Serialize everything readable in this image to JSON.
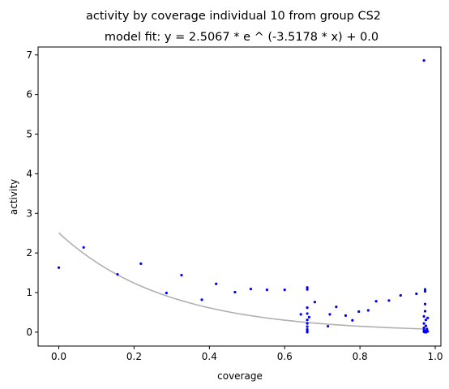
{
  "chart_data": {
    "type": "scatter",
    "title": "activity by coverage individual 10 from group CS2",
    "subtitle": "model fit: y = 2.5067 * e ^ (-3.5178 * x) + 0.0",
    "xlabel": "coverage",
    "ylabel": "activity",
    "xlim": [
      -0.055,
      1.015
    ],
    "ylim": [
      -0.35,
      7.2
    ],
    "xticks": [
      0.0,
      0.2,
      0.4,
      0.6,
      0.8,
      1.0
    ],
    "xtick_labels": [
      "0.0",
      "0.2",
      "0.4",
      "0.6",
      "0.8",
      "1.0"
    ],
    "yticks": [
      0,
      1,
      2,
      3,
      4,
      5,
      6,
      7
    ],
    "ytick_labels": [
      "0",
      "1",
      "2",
      "3",
      "4",
      "5",
      "6",
      "7"
    ],
    "grid": false,
    "point_color": "#0000ff",
    "fit_color": "#b0b0b0",
    "fit": {
      "a": 2.5067,
      "b": -3.5178,
      "c": 0.0
    },
    "points": [
      [
        0.0,
        1.63
      ],
      [
        0.066,
        2.14
      ],
      [
        0.156,
        1.46
      ],
      [
        0.218,
        1.73
      ],
      [
        0.286,
        0.99
      ],
      [
        0.326,
        1.44
      ],
      [
        0.38,
        0.82
      ],
      [
        0.418,
        1.22
      ],
      [
        0.468,
        1.01
      ],
      [
        0.51,
        1.09
      ],
      [
        0.553,
        1.07
      ],
      [
        0.6,
        1.07
      ],
      [
        0.643,
        0.45
      ],
      [
        0.66,
        1.13
      ],
      [
        0.66,
        1.08
      ],
      [
        0.66,
        0.62
      ],
      [
        0.66,
        0.47
      ],
      [
        0.66,
        0.31
      ],
      [
        0.66,
        0.22
      ],
      [
        0.66,
        0.14
      ],
      [
        0.66,
        0.07
      ],
      [
        0.66,
        0.03
      ],
      [
        0.66,
        0.0
      ],
      [
        0.665,
        0.38
      ],
      [
        0.68,
        0.76
      ],
      [
        0.715,
        0.15
      ],
      [
        0.72,
        0.45
      ],
      [
        0.737,
        0.64
      ],
      [
        0.762,
        0.42
      ],
      [
        0.78,
        0.3
      ],
      [
        0.797,
        0.52
      ],
      [
        0.822,
        0.55
      ],
      [
        0.843,
        0.78
      ],
      [
        0.877,
        0.8
      ],
      [
        0.908,
        0.93
      ],
      [
        0.95,
        0.97
      ],
      [
        0.97,
        6.86
      ],
      [
        0.973,
        1.08
      ],
      [
        0.973,
        1.03
      ],
      [
        0.973,
        0.71
      ],
      [
        0.973,
        0.53
      ],
      [
        0.97,
        0.4
      ],
      [
        0.975,
        0.31
      ],
      [
        0.97,
        0.22
      ],
      [
        0.975,
        0.16
      ],
      [
        0.97,
        0.11
      ],
      [
        0.978,
        0.08
      ],
      [
        0.97,
        0.05
      ],
      [
        0.975,
        0.03
      ],
      [
        0.98,
        0.02
      ],
      [
        0.97,
        0.01
      ],
      [
        0.976,
        0.0
      ],
      [
        0.972,
        0.0
      ],
      [
        0.98,
        0.36
      ]
    ]
  }
}
